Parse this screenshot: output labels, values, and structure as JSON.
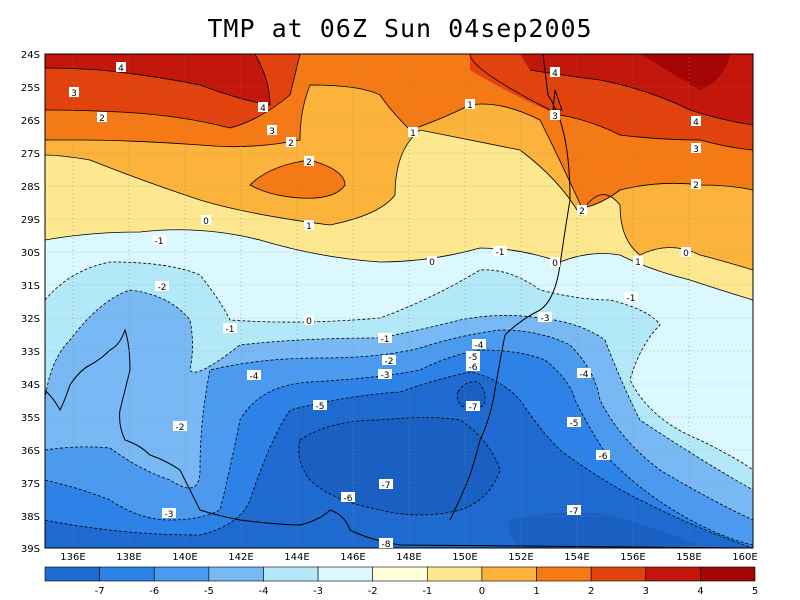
{
  "title": "TMP at 06Z Sun 04sep2005",
  "lat_labels": [
    "24S",
    "25S",
    "26S",
    "27S",
    "28S",
    "29S",
    "30S",
    "31S",
    "32S",
    "33S",
    "34S",
    "35S",
    "36S",
    "37S",
    "38S",
    "39S"
  ],
  "lon_labels": [
    "136E",
    "138E",
    "140E",
    "142E",
    "144E",
    "146E",
    "148E",
    "150E",
    "152E",
    "154E",
    "156E",
    "158E",
    "160E"
  ],
  "colorbar": {
    "colors": [
      "#1e6ad0",
      "#2c82e6",
      "#4b9af0",
      "#78b8f5",
      "#b3e8f8",
      "#dcf8ff",
      "#ffffd8",
      "#fde890",
      "#fcb33c",
      "#f57a16",
      "#e2420e",
      "#c3170c",
      "#a40505"
    ],
    "labels": [
      "-7",
      "-6",
      "-5",
      "-4",
      "-3",
      "-2",
      "-1",
      "0",
      "1",
      "2",
      "3",
      "4",
      "5"
    ]
  },
  "contour_labels": [
    {
      "text": "4",
      "key": "c1"
    },
    {
      "text": "3",
      "key": "c2"
    },
    {
      "text": "2",
      "key": "c3"
    },
    {
      "text": "4",
      "key": "c4"
    },
    {
      "text": "3",
      "key": "c5"
    },
    {
      "text": "2",
      "key": "c6"
    },
    {
      "text": "2",
      "key": "c7"
    },
    {
      "text": "1",
      "key": "c8"
    },
    {
      "text": "0",
      "key": "c9"
    },
    {
      "text": "1",
      "key": "c10"
    },
    {
      "text": "-1",
      "key": "c11"
    },
    {
      "text": "0",
      "key": "c12"
    },
    {
      "text": "-1",
      "key": "c13"
    },
    {
      "text": "0",
      "key": "c14"
    },
    {
      "text": "-2",
      "key": "c15"
    },
    {
      "text": "-1",
      "key": "c16"
    },
    {
      "text": "0",
      "key": "c17"
    },
    {
      "text": "-3",
      "key": "c18"
    },
    {
      "text": "-1",
      "key": "c19"
    },
    {
      "text": "-4",
      "key": "c20"
    },
    {
      "text": "-5",
      "key": "c21"
    },
    {
      "text": "-6",
      "key": "c22"
    },
    {
      "text": "-2",
      "key": "c23"
    },
    {
      "text": "-3",
      "key": "c24"
    },
    {
      "text": "-4",
      "key": "c25"
    },
    {
      "text": "-5",
      "key": "c26"
    },
    {
      "text": "-7",
      "key": "c27"
    },
    {
      "text": "-2",
      "key": "c28"
    },
    {
      "text": "-7",
      "key": "c29"
    },
    {
      "text": "-6",
      "key": "c30"
    },
    {
      "text": "-3",
      "key": "c31"
    },
    {
      "text": "-8",
      "key": "c32"
    },
    {
      "text": "-7",
      "key": "c33"
    },
    {
      "text": "-4",
      "key": "c34"
    },
    {
      "text": "-5",
      "key": "c35"
    },
    {
      "text": "-6",
      "key": "c36"
    },
    {
      "text": "-1",
      "key": "c37"
    },
    {
      "text": "1",
      "key": "c38"
    },
    {
      "text": "0",
      "key": "c39"
    },
    {
      "text": "2",
      "key": "c40"
    },
    {
      "text": "3",
      "key": "c41"
    },
    {
      "text": "4",
      "key": "c42"
    },
    {
      "text": "2",
      "key": "c43"
    },
    {
      "text": "3",
      "key": "c44"
    },
    {
      "text": "4",
      "key": "c45"
    },
    {
      "text": "1",
      "key": "c46"
    }
  ]
}
